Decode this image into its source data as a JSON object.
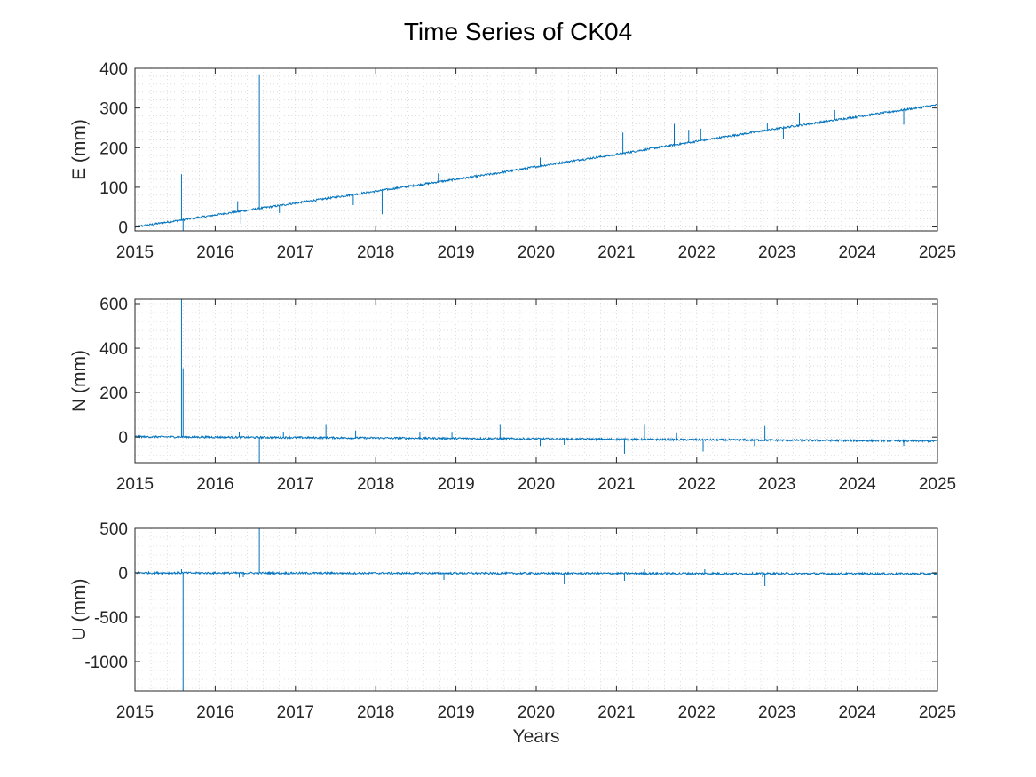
{
  "figure": {
    "title": "Time Series of CK04",
    "xlabel": "Years"
  },
  "colors": {
    "series": "#0072bd",
    "axis": "#262626",
    "grid": "#c8c8c8"
  },
  "chart_data": [
    {
      "type": "line",
      "title": "Time Series of CK04",
      "xlabel": "",
      "ylabel": "E (mm)",
      "xlim": [
        2015,
        2025
      ],
      "ylim": [
        -10,
        400
      ],
      "xticks": [
        2015,
        2016,
        2017,
        2018,
        2019,
        2020,
        2021,
        2022,
        2023,
        2024,
        2025
      ],
      "yticks": [
        0,
        100,
        200,
        300,
        400
      ],
      "grid": "minor dotted",
      "series": [
        {
          "x": [
            2015.0,
            2015.5,
            2016.0,
            2016.5,
            2017.0,
            2017.5,
            2018.0,
            2018.5,
            2019.0,
            2019.5,
            2020.0,
            2020.5,
            2021.0,
            2021.5,
            2022.0,
            2022.5,
            2023.0,
            2023.5,
            2024.0,
            2024.5,
            2025.0
          ],
          "y": [
            0,
            15,
            30,
            45,
            60,
            75,
            90,
            105,
            120,
            135,
            152,
            168,
            183,
            200,
            216,
            232,
            248,
            263,
            278,
            293,
            308
          ],
          "spikes": [
            {
              "x": 2015.58,
              "y": 133
            },
            {
              "x": 2015.6,
              "y": -10
            },
            {
              "x": 2016.28,
              "y": 65
            },
            {
              "x": 2016.32,
              "y": 8
            },
            {
              "x": 2016.55,
              "y": 385
            },
            {
              "x": 2016.8,
              "y": 35
            },
            {
              "x": 2017.72,
              "y": 55
            },
            {
              "x": 2018.08,
              "y": 32
            },
            {
              "x": 2018.78,
              "y": 135
            },
            {
              "x": 2020.05,
              "y": 175
            },
            {
              "x": 2021.08,
              "y": 238
            },
            {
              "x": 2021.72,
              "y": 260
            },
            {
              "x": 2021.9,
              "y": 245
            },
            {
              "x": 2022.05,
              "y": 248
            },
            {
              "x": 2022.88,
              "y": 262
            },
            {
              "x": 2023.08,
              "y": 222
            },
            {
              "x": 2023.28,
              "y": 288
            },
            {
              "x": 2023.72,
              "y": 295
            },
            {
              "x": 2024.58,
              "y": 258
            }
          ]
        }
      ]
    },
    {
      "type": "line",
      "xlabel": "",
      "ylabel": "N (mm)",
      "xlim": [
        2015,
        2025
      ],
      "ylim": [
        -115,
        620
      ],
      "xticks": [
        2015,
        2016,
        2017,
        2018,
        2019,
        2020,
        2021,
        2022,
        2023,
        2024,
        2025
      ],
      "yticks": [
        0,
        200,
        400,
        600
      ],
      "grid": "minor dotted",
      "series": [
        {
          "x": [
            2015.0,
            2016.0,
            2017.0,
            2018.0,
            2019.0,
            2020.0,
            2021.0,
            2022.0,
            2023.0,
            2024.0,
            2025.0
          ],
          "y": [
            2,
            0,
            -2,
            -4,
            -6,
            -8,
            -10,
            -12,
            -14,
            -16,
            -18
          ],
          "spikes": [
            {
              "x": 2015.58,
              "y": 620
            },
            {
              "x": 2015.6,
              "y": 310
            },
            {
              "x": 2016.55,
              "y": -115
            },
            {
              "x": 2016.3,
              "y": 22
            },
            {
              "x": 2016.85,
              "y": 22
            },
            {
              "x": 2016.92,
              "y": 50
            },
            {
              "x": 2017.38,
              "y": 55
            },
            {
              "x": 2017.75,
              "y": 30
            },
            {
              "x": 2018.55,
              "y": 25
            },
            {
              "x": 2018.95,
              "y": 20
            },
            {
              "x": 2019.55,
              "y": 55
            },
            {
              "x": 2020.05,
              "y": -40
            },
            {
              "x": 2020.35,
              "y": -35
            },
            {
              "x": 2021.1,
              "y": -75
            },
            {
              "x": 2021.35,
              "y": 55
            },
            {
              "x": 2021.75,
              "y": 18
            },
            {
              "x": 2022.08,
              "y": -65
            },
            {
              "x": 2022.85,
              "y": 50
            },
            {
              "x": 2022.72,
              "y": -40
            },
            {
              "x": 2024.58,
              "y": -40
            }
          ]
        }
      ]
    },
    {
      "type": "line",
      "xlabel": "Years",
      "ylabel": "U (mm)",
      "xlim": [
        2015,
        2025
      ],
      "ylim": [
        -1330,
        500
      ],
      "xticks": [
        2015,
        2016,
        2017,
        2018,
        2019,
        2020,
        2021,
        2022,
        2023,
        2024,
        2025
      ],
      "yticks": [
        -1000,
        -500,
        0,
        500
      ],
      "grid": "minor dotted",
      "series": [
        {
          "x": [
            2015.0,
            2016.0,
            2017.0,
            2018.0,
            2019.0,
            2020.0,
            2021.0,
            2022.0,
            2023.0,
            2024.0,
            2025.0
          ],
          "y": [
            0,
            -2,
            -3,
            -4,
            -5,
            -6,
            -7,
            -8,
            -9,
            -10,
            -11
          ],
          "spikes": [
            {
              "x": 2015.6,
              "y": -1330
            },
            {
              "x": 2015.58,
              "y": 40
            },
            {
              "x": 2016.3,
              "y": -55
            },
            {
              "x": 2016.35,
              "y": -50
            },
            {
              "x": 2016.55,
              "y": 500
            },
            {
              "x": 2018.85,
              "y": -80
            },
            {
              "x": 2020.35,
              "y": -130
            },
            {
              "x": 2021.1,
              "y": -90
            },
            {
              "x": 2021.35,
              "y": 40
            },
            {
              "x": 2022.1,
              "y": 40
            },
            {
              "x": 2022.85,
              "y": -150
            },
            {
              "x": 2022.82,
              "y": -50
            }
          ]
        }
      ]
    }
  ]
}
